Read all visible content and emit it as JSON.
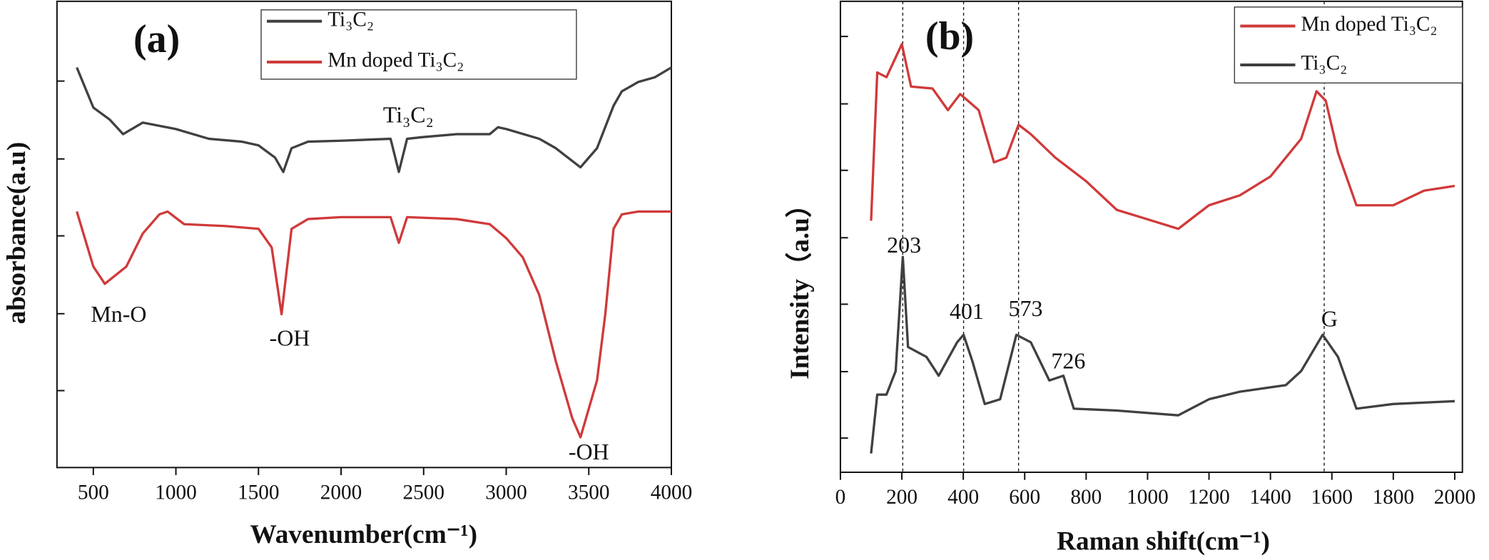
{
  "chart_data": [
    {
      "type": "line",
      "title": "(a)",
      "x_label": "Wavenumber(cm⁻¹)",
      "y_label": "absorbance(a.u)",
      "xlim": [
        280,
        4000
      ],
      "ylim": [
        0,
        100
      ],
      "xticks": [
        500,
        1000,
        1500,
        2000,
        2500,
        3000,
        3500,
        4000
      ],
      "legend": "top-center",
      "annotations": [
        "Ti₃C₂",
        "Mn-O",
        "-OH",
        "-OH"
      ],
      "series": [
        {
          "name": "Ti₃C₂",
          "color": "#404040",
          "x": [
            400,
            500,
            600,
            680,
            800,
            1000,
            1200,
            1400,
            1500,
            1600,
            1650,
            1700,
            1800,
            2000,
            2300,
            2350,
            2400,
            2500,
            2700,
            2900,
            2950,
            3000,
            3200,
            3300,
            3450,
            3550,
            3650,
            3700,
            3800,
            3900,
            4000
          ],
          "values": [
            85.8,
            77.2,
            74.6,
            71.5,
            74,
            72.6,
            70.5,
            69.9,
            69.1,
            66.5,
            63.4,
            68.5,
            69.9,
            70.1,
            70.5,
            63.4,
            70.5,
            70.9,
            71.5,
            71.5,
            73,
            72.6,
            70.5,
            68.5,
            64.4,
            68.5,
            77.6,
            80.7,
            82.7,
            83.7,
            85.8
          ]
        },
        {
          "name": "Mn doped Ti₃C₂",
          "color": "#d03a3a",
          "x": [
            400,
            500,
            570,
            700,
            800,
            900,
            950,
            1050,
            1300,
            1500,
            1580,
            1640,
            1700,
            1800,
            2000,
            2300,
            2350,
            2400,
            2700,
            2900,
            3000,
            3100,
            3200,
            3300,
            3400,
            3450,
            3550,
            3600,
            3650,
            3700,
            3800,
            4000
          ],
          "values": [
            54.9,
            43.1,
            39.4,
            43.1,
            50.2,
            54.3,
            54.9,
            52.2,
            51.8,
            51.2,
            47.2,
            32.9,
            51.2,
            53.3,
            53.7,
            53.7,
            48.2,
            53.7,
            53.3,
            52.2,
            49.2,
            45.1,
            37,
            22.8,
            10.6,
            6.5,
            18.7,
            32.9,
            51.2,
            54.3,
            54.9,
            54.9
          ]
        }
      ]
    },
    {
      "type": "line",
      "title": "(b)",
      "x_label": "Raman shift(cm⁻¹)",
      "y_label": "Intensity（a.u）",
      "xlim": [
        0,
        2025
      ],
      "ylim": [
        0,
        100
      ],
      "xticks": [
        0,
        200,
        400,
        600,
        800,
        1000,
        1200,
        1400,
        1600,
        1800,
        2000
      ],
      "legend": "top-right",
      "reference_lines": [
        203,
        401,
        580,
        1575
      ],
      "annotations": [
        "203",
        "401",
        "573",
        "726",
        "G"
      ],
      "series": [
        {
          "name": "Mn doped Ti₃C₂",
          "color": "#d03a3a",
          "x": [
            100,
            120,
            150,
            200,
            230,
            300,
            350,
            390,
            450,
            500,
            540,
            580,
            620,
            700,
            800,
            900,
            1000,
            1100,
            1200,
            1300,
            1400,
            1500,
            1550,
            1580,
            1620,
            1680,
            1800,
            1900,
            2000
          ],
          "values": [
            53.4,
            84.9,
            83.9,
            90.9,
            81.9,
            81.5,
            76.9,
            80.3,
            76.9,
            65.8,
            66.8,
            73.8,
            71.8,
            66.8,
            61.8,
            55.7,
            53.7,
            51.7,
            56.7,
            58.8,
            62.8,
            70.8,
            80.9,
            78.9,
            67.8,
            56.7,
            56.7,
            59.8,
            60.8
          ]
        },
        {
          "name": "Ti₃C₂",
          "color": "#404040",
          "x": [
            100,
            120,
            150,
            180,
            203,
            220,
            280,
            320,
            380,
            401,
            430,
            470,
            520,
            573,
            620,
            680,
            726,
            760,
            900,
            1100,
            1200,
            1300,
            1450,
            1500,
            1570,
            1620,
            1680,
            1800,
            2000
          ],
          "values": [
            4,
            16.5,
            16.5,
            21.5,
            45.7,
            26.6,
            24.5,
            20.5,
            27.6,
            29.2,
            23.5,
            14.5,
            15.5,
            29.2,
            27.6,
            19.5,
            20.5,
            13.5,
            13.1,
            12.1,
            15.5,
            17.1,
            18.5,
            21.5,
            29.2,
            24.5,
            13.5,
            14.5,
            15.1
          ]
        }
      ]
    }
  ]
}
